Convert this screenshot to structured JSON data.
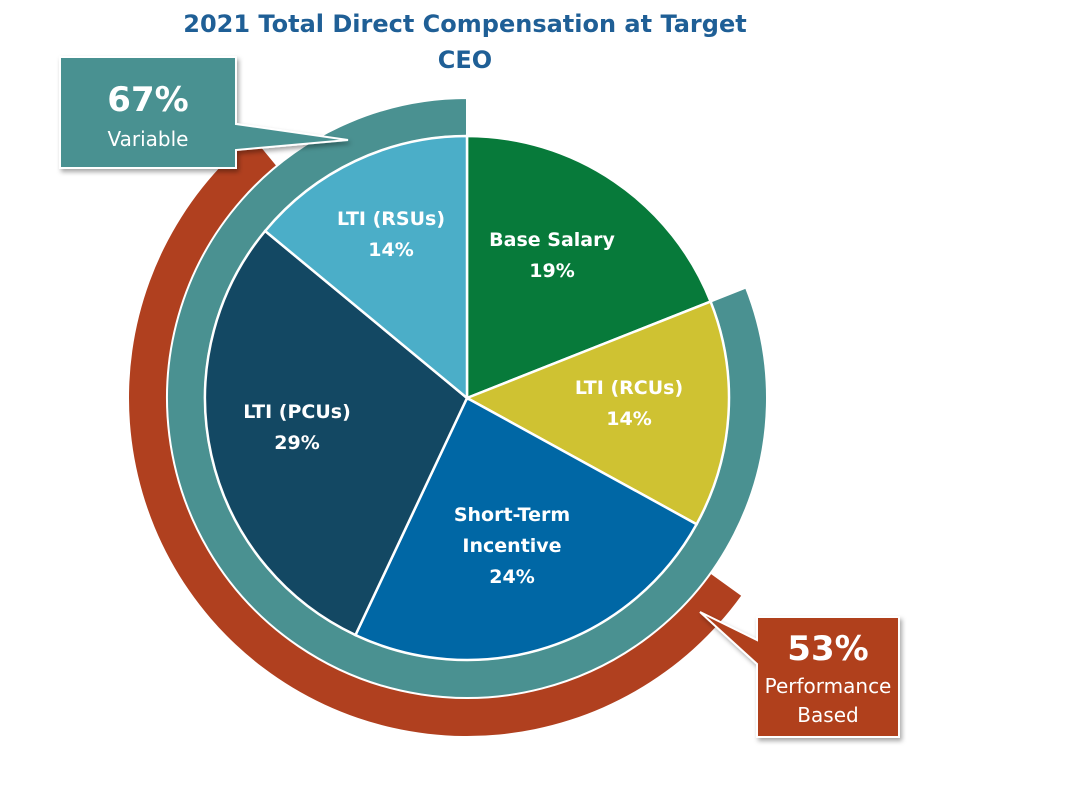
{
  "chart_data": {
    "type": "pie",
    "title": "2021 Total Direct Compensation at Target",
    "subtitle": "CEO",
    "slices": [
      {
        "label_lines": [
          "Base Salary"
        ],
        "value_label": "19%",
        "value": 19,
        "color": "#077a3a"
      },
      {
        "label_lines": [
          "LTI (RCUs)"
        ],
        "value_label": "14%",
        "value": 14,
        "color": "#cfc232"
      },
      {
        "label_lines": [
          "Short-Term",
          "Incentive"
        ],
        "value_label": "24%",
        "value": 24,
        "color": "#0067a5"
      },
      {
        "label_lines": [
          "LTI (PCUs)"
        ],
        "value_label": "29%",
        "value": 29,
        "color": "#134863"
      },
      {
        "label_lines": [
          "LTI (RSUs)"
        ],
        "value_label": "14%",
        "value": 14,
        "color": "#4baec8"
      }
    ],
    "groups": [
      {
        "pct": "67%",
        "label_lines": [
          "Variable"
        ],
        "color": "#4a9191"
      },
      {
        "pct": "53%",
        "label_lines": [
          "Performance",
          "Based"
        ],
        "color": "#b0401f"
      }
    ]
  }
}
